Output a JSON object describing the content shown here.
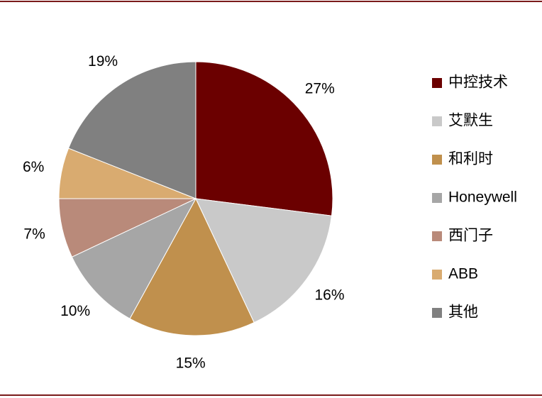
{
  "chart_data": {
    "type": "pie",
    "categories": [
      "中控技术",
      "艾默生",
      "和利时",
      "Honeywell",
      "西门子",
      "ABB",
      "其他"
    ],
    "values": [
      27,
      16,
      15,
      10,
      7,
      6,
      19
    ],
    "value_labels": [
      "27%",
      "16%",
      "15%",
      "10%",
      "7%",
      "6%",
      "19%"
    ],
    "colors": [
      "#6b0000",
      "#c9c9c9",
      "#c0904d",
      "#a6a6a6",
      "#b98a7a",
      "#d9ab70",
      "#808080"
    ],
    "legend": "right"
  }
}
